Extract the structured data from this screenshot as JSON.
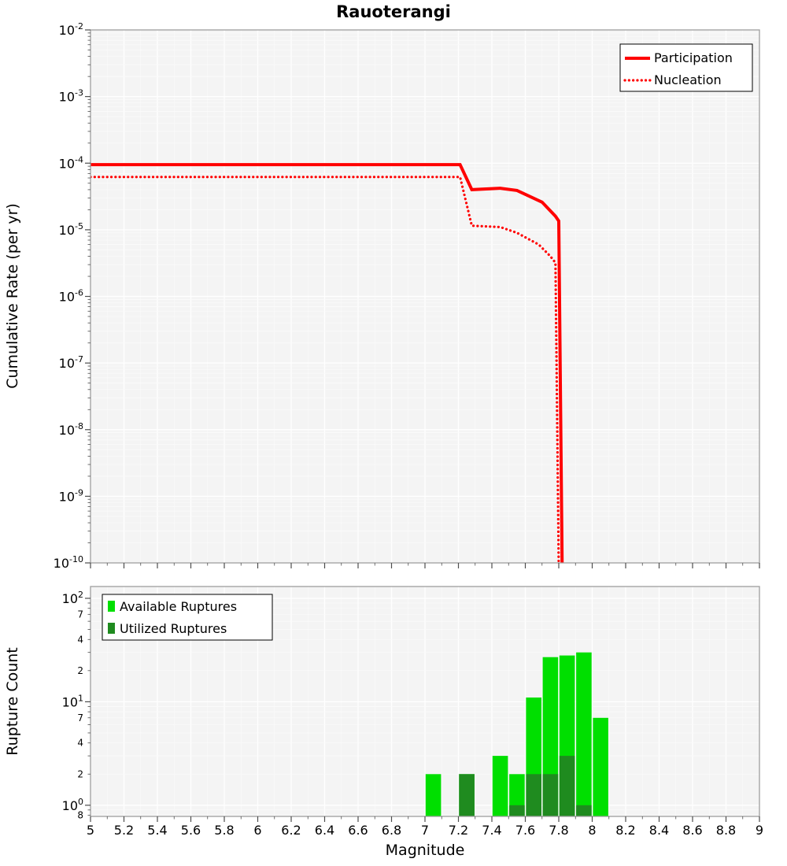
{
  "title": "Rauoterangi",
  "axes": {
    "x_label": "Magnitude",
    "top_y_label": "Cumulative Rate (per yr)",
    "bottom_y_label": "Rupture Count"
  },
  "legend_top": {
    "position": "top-right",
    "items": [
      {
        "label": "Participation",
        "style": "solid"
      },
      {
        "label": "Nucleation",
        "style": "dotted"
      }
    ]
  },
  "legend_bottom": {
    "position": "top-left",
    "items": [
      {
        "label": "Available Ruptures",
        "color_key": "available_green"
      },
      {
        "label": "Utilized Ruptures",
        "color_key": "utilized_green"
      }
    ]
  },
  "colors": {
    "line_red": "#ff0000",
    "available_green": "#00df00",
    "utilized_green": "#1f8b1f",
    "plot_bg": "#f4f4f4",
    "grid_major": "#ffffff",
    "grid_minor": "#fbfbfb",
    "frame": "#9e9e9e",
    "tick": "#4d4d4d"
  },
  "chart_data": [
    {
      "type": "line",
      "title": "Rauoterangi",
      "xlabel": "Magnitude",
      "ylabel": "Cumulative Rate (per yr)",
      "x_range": [
        5,
        9
      ],
      "x_tick_step": 0.2,
      "y_scale": "log",
      "y_range": [
        1e-10,
        0.01
      ],
      "grid": true,
      "legend_position": "top-right",
      "series": [
        {
          "name": "Participation",
          "color": "#ff0000",
          "style": "solid",
          "points": [
            [
              5.0,
              9.5e-05
            ],
            [
              7.21,
              9.5e-05
            ],
            [
              7.28,
              4e-05
            ],
            [
              7.45,
              4.2e-05
            ],
            [
              7.55,
              3.9e-05
            ],
            [
              7.7,
              2.6e-05
            ],
            [
              7.78,
              1.6e-05
            ],
            [
              7.8,
              1.35e-05
            ],
            [
              7.82,
              8e-11
            ]
          ]
        },
        {
          "name": "Nucleation",
          "color": "#ff0000",
          "style": "dotted",
          "points": [
            [
              5.0,
              6.2e-05
            ],
            [
              7.21,
              6.2e-05
            ],
            [
              7.28,
              1.15e-05
            ],
            [
              7.45,
              1.1e-05
            ],
            [
              7.55,
              9e-06
            ],
            [
              7.68,
              6e-06
            ],
            [
              7.75,
              4e-06
            ],
            [
              7.78,
              3.2e-06
            ],
            [
              7.8,
              8e-11
            ]
          ]
        }
      ]
    },
    {
      "type": "bar",
      "xlabel": "Magnitude",
      "ylabel": "Rupture Count",
      "x_range": [
        5,
        9
      ],
      "x_tick_step": 0.2,
      "y_scale": "log",
      "y_range": [
        0.78,
        130
      ],
      "bar_width": 0.092,
      "grid": true,
      "legend_position": "top-left",
      "series": [
        {
          "name": "Available Ruptures",
          "color": "#00df00",
          "x": [
            7.05,
            7.25,
            7.45,
            7.55,
            7.65,
            7.75,
            7.85,
            7.95,
            8.05
          ],
          "counts": [
            2,
            2,
            3,
            2,
            11,
            27,
            28,
            30,
            7
          ]
        },
        {
          "name": "Utilized Ruptures",
          "color": "#1f8b1f",
          "x": [
            7.25,
            7.55,
            7.65,
            7.75,
            7.85,
            7.95
          ],
          "counts": [
            2,
            1,
            2,
            2,
            3,
            1
          ]
        }
      ]
    }
  ]
}
